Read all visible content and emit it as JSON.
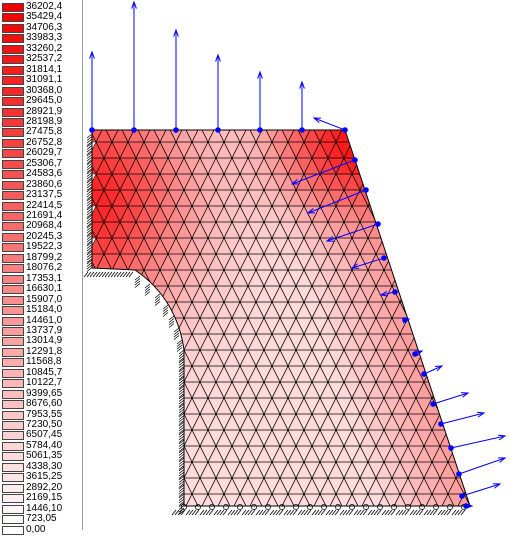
{
  "legend": {
    "values": [
      "36202,4",
      "35429,4",
      "34706,3",
      "33983,3",
      "33260,2",
      "32537,2",
      "31814,1",
      "31091,1",
      "30368,0",
      "29645,0",
      "28921,9",
      "28198,9",
      "27475,8",
      "26752,8",
      "26029,7",
      "25306,7",
      "24583,6",
      "23860,6",
      "23137,5",
      "22414,5",
      "21691,4",
      "20968,4",
      "20245,3",
      "19522,3",
      "18799,2",
      "18076,2",
      "17353,1",
      "16630,1",
      "15907,0",
      "15184,0",
      "14461,0",
      "13737,9",
      "13014,9",
      "12291,8",
      "11568,8",
      "10845,7",
      "10122,7",
      "9399,65",
      "8676,60",
      "7953,55",
      "7230,50",
      "6507,45",
      "5784,40",
      "5061,35",
      "4338,30",
      "3615,25",
      "2892,20",
      "2169,15",
      "1446,10",
      "723,05",
      "0,00"
    ],
    "color_max": "#f00000",
    "color_min": "#ffffff"
  },
  "plot": {
    "mesh_line_color": "#000000",
    "arrow_color": "#0000ff",
    "support_color": "#000000"
  }
}
